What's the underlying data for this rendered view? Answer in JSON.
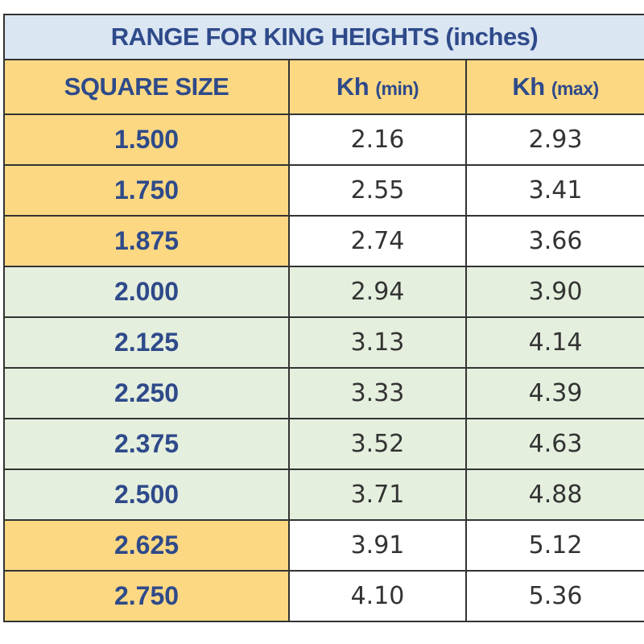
{
  "table": {
    "title": "RANGE FOR KING HEIGHTS (inches)",
    "headers": {
      "size": "SQUARE SIZE",
      "min_main": "Kh",
      "min_unit": "(min)",
      "max_main": "Kh",
      "max_unit": "(max)"
    },
    "colors": {
      "title_bg": "#dbe6f3",
      "header_bg": "#fcd882",
      "highlight_band": "#e5efde",
      "label_text": "#2e4a8a",
      "value_text": "#333333"
    },
    "rows": [
      {
        "size": "1.500",
        "kh_min": "2.16",
        "kh_max": "2.93",
        "band": "yellow"
      },
      {
        "size": "1.750",
        "kh_min": "2.55",
        "kh_max": "3.41",
        "band": "yellow"
      },
      {
        "size": "1.875",
        "kh_min": "2.74",
        "kh_max": "3.66",
        "band": "yellow"
      },
      {
        "size": "2.000",
        "kh_min": "2.94",
        "kh_max": "3.90",
        "band": "green"
      },
      {
        "size": "2.125",
        "kh_min": "3.13",
        "kh_max": "4.14",
        "band": "green"
      },
      {
        "size": "2.250",
        "kh_min": "3.33",
        "kh_max": "4.39",
        "band": "green"
      },
      {
        "size": "2.375",
        "kh_min": "3.52",
        "kh_max": "4.63",
        "band": "green"
      },
      {
        "size": "2.500",
        "kh_min": "3.71",
        "kh_max": "4.88",
        "band": "green"
      },
      {
        "size": "2.625",
        "kh_min": "3.91",
        "kh_max": "5.12",
        "band": "yellow"
      },
      {
        "size": "2.750",
        "kh_min": "4.10",
        "kh_max": "5.36",
        "band": "yellow"
      }
    ]
  }
}
